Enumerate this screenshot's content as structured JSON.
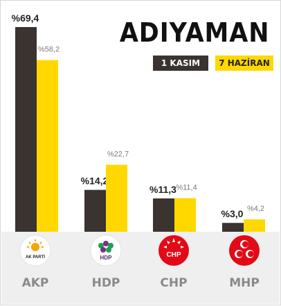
{
  "title": "ADIYAMAN",
  "colors": {
    "kasim": "#3a3330",
    "haziran": "#ffd800",
    "label_dark": "#222222",
    "label_light": "#7a7a7a"
  },
  "legend": {
    "kasim_label": "1 KASIM",
    "haziran_label": "7 HAZİRAN"
  },
  "chart_data": {
    "type": "bar",
    "categories": [
      "AKP",
      "HDP",
      "CHP",
      "MHP"
    ],
    "series": [
      {
        "name": "1 KASIM",
        "values": [
          69.4,
          14.2,
          11.3,
          3.0
        ],
        "labels": [
          "%69,4",
          "%14,2",
          "%11,3",
          "%3,0"
        ]
      },
      {
        "name": "7 HAZİRAN",
        "values": [
          58.2,
          22.7,
          11.4,
          4.2
        ],
        "labels": [
          "%58,2",
          "%22,7",
          "%11,4",
          "%4,2"
        ]
      }
    ],
    "ylim": [
      0,
      69.4
    ],
    "legend_position": "top-right",
    "grid": false
  },
  "logos": {
    "akp_text": "AK PARTİ",
    "hdp_text": "HDP",
    "chp_text": "CHP"
  }
}
